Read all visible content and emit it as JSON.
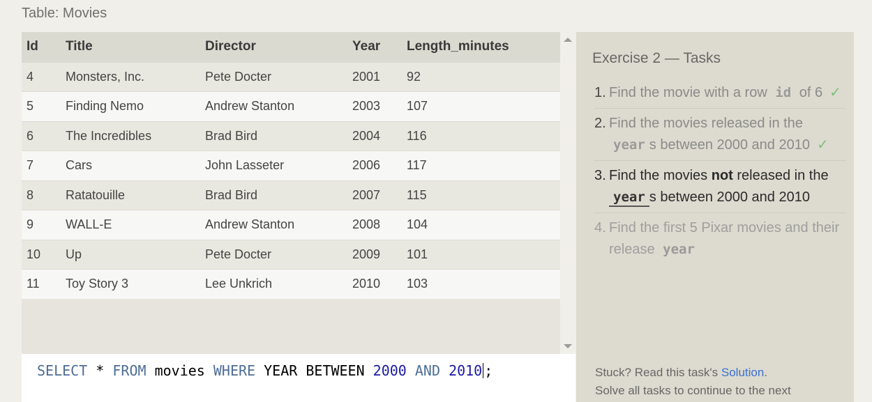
{
  "table": {
    "caption": "Table: Movies",
    "columns": [
      "Id",
      "Title",
      "Director",
      "Year",
      "Length_minutes"
    ],
    "rows": [
      [
        "4",
        "Monsters, Inc.",
        "Pete Docter",
        "2001",
        "92"
      ],
      [
        "5",
        "Finding Nemo",
        "Andrew Stanton",
        "2003",
        "107"
      ],
      [
        "6",
        "The Incredibles",
        "Brad Bird",
        "2004",
        "116"
      ],
      [
        "7",
        "Cars",
        "John Lasseter",
        "2006",
        "117"
      ],
      [
        "8",
        "Ratatouille",
        "Brad Bird",
        "2007",
        "115"
      ],
      [
        "9",
        "WALL-E",
        "Andrew Stanton",
        "2008",
        "104"
      ],
      [
        "10",
        "Up",
        "Pete Docter",
        "2009",
        "101"
      ],
      [
        "11",
        "Toy Story 3",
        "Lee Unkrich",
        "2010",
        "103"
      ]
    ]
  },
  "editor": {
    "tokens": [
      {
        "text": "SELECT",
        "type": "kw"
      },
      {
        "text": " * ",
        "type": "plain"
      },
      {
        "text": "FROM",
        "type": "kw"
      },
      {
        "text": " movies ",
        "type": "plain"
      },
      {
        "text": "WHERE",
        "type": "kw"
      },
      {
        "text": " YEAR BETWEEN ",
        "type": "plain"
      },
      {
        "text": "2000",
        "type": "num"
      },
      {
        "text": " ",
        "type": "plain"
      },
      {
        "text": "AND",
        "type": "kw"
      },
      {
        "text": " ",
        "type": "plain"
      },
      {
        "text": "2010",
        "type": "num"
      },
      {
        "text": "",
        "type": "cursor"
      },
      {
        "text": ";",
        "type": "plain"
      }
    ]
  },
  "tasks": {
    "title": "Exercise 2 — Tasks",
    "items": [
      {
        "num": "1.",
        "state": "done",
        "parts": [
          {
            "text": "Find the movie with a row ",
            "type": "text"
          },
          {
            "text": "id",
            "type": "code"
          },
          {
            "text": " of 6",
            "type": "text"
          },
          {
            "text": "✓",
            "type": "check"
          }
        ]
      },
      {
        "num": "2.",
        "state": "done",
        "parts": [
          {
            "text": "Find the movies released in the ",
            "type": "text"
          },
          {
            "text": "year",
            "type": "code"
          },
          {
            "text": "s between 2000 and 2010",
            "type": "text"
          },
          {
            "text": "✓",
            "type": "check"
          }
        ]
      },
      {
        "num": "3.",
        "state": "current",
        "parts": [
          {
            "text": "Find the movies ",
            "type": "text"
          },
          {
            "text": "not",
            "type": "bold"
          },
          {
            "text": " released in the ",
            "type": "text"
          },
          {
            "text": "year",
            "type": "code"
          },
          {
            "text": "s between 2000 and 2010",
            "type": "text"
          }
        ]
      },
      {
        "num": "4.",
        "state": "future",
        "parts": [
          {
            "text": "Find the first 5 Pixar movies and their release ",
            "type": "text"
          },
          {
            "text": "year",
            "type": "code"
          }
        ]
      }
    ],
    "stuck_prefix": "Stuck? Read this task's ",
    "solution_link": "Solution",
    "stuck_suffix": ".",
    "continue_text": "Solve all tasks to continue to the next"
  },
  "colors": {
    "keyword": "#4d6d96",
    "number": "#1a1aa6",
    "check": "#7cc07c",
    "link": "#3b6fd1"
  }
}
